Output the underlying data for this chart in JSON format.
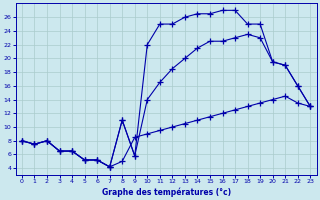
{
  "bg_color": "#cce8ee",
  "grid_color": "#aacccc",
  "line_color": "#0000aa",
  "xlabel": "Graphe des températures (°c)",
  "xlim": [
    -0.5,
    23.5
  ],
  "ylim": [
    3,
    28
  ],
  "yticks": [
    4,
    6,
    8,
    10,
    12,
    14,
    16,
    18,
    20,
    22,
    24,
    26
  ],
  "xticks": [
    0,
    1,
    2,
    3,
    4,
    5,
    6,
    7,
    8,
    9,
    10,
    11,
    12,
    13,
    14,
    15,
    16,
    17,
    18,
    19,
    20,
    21,
    22,
    23
  ],
  "line1_x": [
    0,
    1,
    2,
    3,
    4,
    5,
    6,
    7,
    8,
    9,
    10,
    11,
    12,
    13,
    14,
    15,
    16,
    17,
    18,
    19,
    20,
    21,
    22,
    23
  ],
  "line1_y": [
    8,
    7.5,
    8,
    6.5,
    6.5,
    5.2,
    5.2,
    4.2,
    5.0,
    8.5,
    9.0,
    9.5,
    10.0,
    10.5,
    11.0,
    11.5,
    12.0,
    12.5,
    13.0,
    13.5,
    14.0,
    14.5,
    13.5,
    13.0
  ],
  "line2_x": [
    0,
    1,
    2,
    3,
    4,
    5,
    6,
    7,
    8,
    9,
    10,
    11,
    12,
    13,
    14,
    15,
    16,
    17,
    18,
    19,
    20,
    21,
    22,
    23
  ],
  "line2_y": [
    8,
    7.5,
    8,
    6.5,
    6.5,
    5.2,
    5.2,
    4.2,
    11.0,
    5.8,
    14.0,
    16.5,
    18.5,
    20.0,
    21.5,
    22.5,
    22.5,
    23.0,
    23.5,
    23.0,
    19.5,
    19.0,
    16.0,
    13.0
  ],
  "line3_x": [
    0,
    1,
    2,
    3,
    4,
    5,
    6,
    7,
    8,
    9,
    10,
    11,
    12,
    13,
    14,
    15,
    16,
    17,
    18,
    19,
    20,
    21,
    22,
    23
  ],
  "line3_y": [
    8,
    7.5,
    8,
    6.5,
    6.5,
    5.2,
    5.2,
    4.2,
    11.0,
    5.8,
    22.0,
    25.0,
    25.0,
    26.0,
    26.5,
    26.5,
    27.0,
    27.0,
    25.0,
    25.0,
    19.5,
    19.0,
    16.0,
    13.0
  ]
}
